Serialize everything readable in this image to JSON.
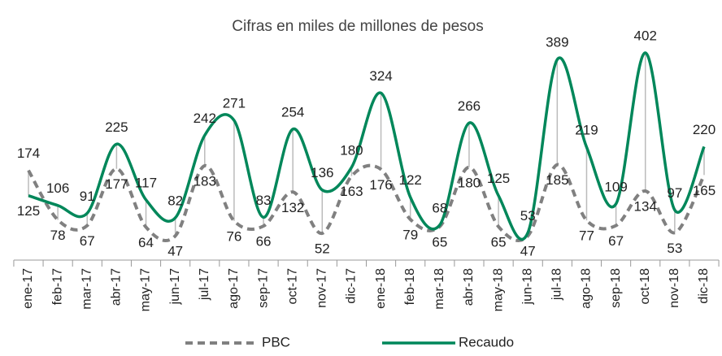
{
  "chart_data": {
    "type": "line",
    "subtitle": "Cifras en miles de millones de pesos",
    "categories": [
      "ene-17",
      "feb-17",
      "mar-17",
      "abr-17",
      "may-17",
      "jun-17",
      "jul-17",
      "ago-17",
      "sep-17",
      "oct-17",
      "nov-17",
      "dic-17",
      "ene-18",
      "feb-18",
      "mar-18",
      "abr-18",
      "may-18",
      "jun-18",
      "jul-18",
      "ago-18",
      "sep-18",
      "oct-18",
      "nov-18",
      "dic-18"
    ],
    "series": [
      {
        "name": "PBC",
        "color": "#808080",
        "dashed": true,
        "values": [
          174,
          78,
          67,
          177,
          64,
          47,
          183,
          76,
          66,
          132,
          52,
          163,
          176,
          79,
          65,
          180,
          65,
          47,
          185,
          77,
          67,
          134,
          53,
          165
        ]
      },
      {
        "name": "Recaudo",
        "color": "#00875a",
        "dashed": false,
        "values": [
          125,
          106,
          91,
          225,
          117,
          82,
          242,
          271,
          83,
          254,
          136,
          180,
          324,
          122,
          68,
          266,
          125,
          53,
          389,
          219,
          109,
          402,
          97,
          220
        ]
      }
    ],
    "legend": "bottom"
  }
}
